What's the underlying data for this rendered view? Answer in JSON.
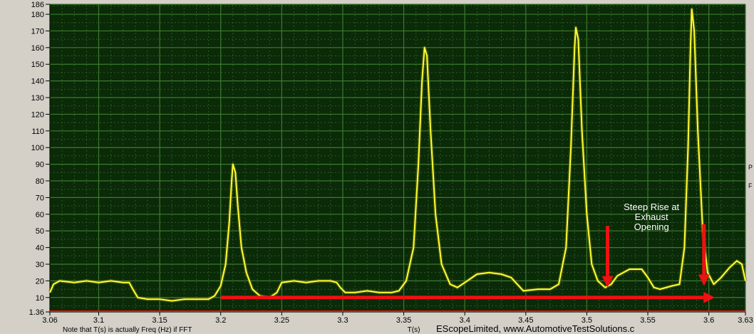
{
  "chart_data": {
    "type": "line",
    "title": "",
    "xlabel": "T(s)",
    "ylabel": "",
    "xlim": [
      3.06,
      3.63
    ],
    "ylim": [
      1.36,
      186
    ],
    "grid": true,
    "x_ticks": [
      "3.06",
      "3.1",
      "3.15",
      "3.2",
      "3.25",
      "3.3",
      "3.35",
      "3.4",
      "3.45",
      "3.5",
      "3.55",
      "3.6",
      "3.63"
    ],
    "x_tick_values": [
      3.06,
      3.1,
      3.15,
      3.2,
      3.25,
      3.3,
      3.35,
      3.4,
      3.45,
      3.5,
      3.55,
      3.6,
      3.63
    ],
    "y_ticks": [
      "1.36",
      "10",
      "20",
      "30",
      "40",
      "50",
      "60",
      "70",
      "80",
      "90",
      "100",
      "110",
      "120",
      "130",
      "140",
      "150",
      "160",
      "170",
      "180",
      "186"
    ],
    "y_tick_values": [
      1.36,
      10,
      20,
      30,
      40,
      50,
      60,
      70,
      80,
      90,
      100,
      110,
      120,
      130,
      140,
      150,
      160,
      170,
      180,
      186
    ],
    "series": [
      {
        "color": "#ffff33",
        "points": [
          [
            3.06,
            13
          ],
          [
            3.063,
            18
          ],
          [
            3.068,
            20
          ],
          [
            3.08,
            19
          ],
          [
            3.09,
            20
          ],
          [
            3.1,
            19
          ],
          [
            3.11,
            20
          ],
          [
            3.12,
            19
          ],
          [
            3.125,
            19
          ],
          [
            3.128,
            15
          ],
          [
            3.132,
            10
          ],
          [
            3.14,
            9
          ],
          [
            3.15,
            9
          ],
          [
            3.16,
            8
          ],
          [
            3.17,
            9
          ],
          [
            3.18,
            9
          ],
          [
            3.19,
            9
          ],
          [
            3.195,
            11
          ],
          [
            3.2,
            17
          ],
          [
            3.204,
            30
          ],
          [
            3.207,
            55
          ],
          [
            3.209,
            80
          ],
          [
            3.21,
            90
          ],
          [
            3.212,
            85
          ],
          [
            3.214,
            65
          ],
          [
            3.217,
            40
          ],
          [
            3.221,
            25
          ],
          [
            3.226,
            15
          ],
          [
            3.232,
            11
          ],
          [
            3.24,
            10
          ],
          [
            3.246,
            13
          ],
          [
            3.25,
            19
          ],
          [
            3.26,
            20
          ],
          [
            3.27,
            19
          ],
          [
            3.28,
            20
          ],
          [
            3.29,
            20
          ],
          [
            3.295,
            19
          ],
          [
            3.298,
            16
          ],
          [
            3.302,
            13
          ],
          [
            3.31,
            13
          ],
          [
            3.32,
            14
          ],
          [
            3.33,
            13
          ],
          [
            3.34,
            13
          ],
          [
            3.346,
            14
          ],
          [
            3.352,
            20
          ],
          [
            3.358,
            40
          ],
          [
            3.362,
            90
          ],
          [
            3.365,
            140
          ],
          [
            3.367,
            160
          ],
          [
            3.369,
            155
          ],
          [
            3.372,
            110
          ],
          [
            3.376,
            60
          ],
          [
            3.381,
            30
          ],
          [
            3.388,
            18
          ],
          [
            3.394,
            16
          ],
          [
            3.402,
            20
          ],
          [
            3.41,
            24
          ],
          [
            3.42,
            25
          ],
          [
            3.43,
            24
          ],
          [
            3.438,
            22
          ],
          [
            3.443,
            18
          ],
          [
            3.448,
            14
          ],
          [
            3.46,
            15
          ],
          [
            3.47,
            15
          ],
          [
            3.477,
            18
          ],
          [
            3.483,
            40
          ],
          [
            3.487,
            100
          ],
          [
            3.49,
            160
          ],
          [
            3.491,
            172
          ],
          [
            3.493,
            165
          ],
          [
            3.496,
            110
          ],
          [
            3.5,
            60
          ],
          [
            3.504,
            30
          ],
          [
            3.509,
            20
          ],
          [
            3.515,
            16
          ],
          [
            3.52,
            18
          ],
          [
            3.525,
            23
          ],
          [
            3.535,
            27
          ],
          [
            3.545,
            27
          ],
          [
            3.55,
            22
          ],
          [
            3.555,
            16
          ],
          [
            3.56,
            15
          ],
          [
            3.57,
            17
          ],
          [
            3.576,
            18
          ],
          [
            3.58,
            40
          ],
          [
            3.583,
            100
          ],
          [
            3.585,
            160
          ],
          [
            3.586,
            183
          ],
          [
            3.588,
            170
          ],
          [
            3.591,
            110
          ],
          [
            3.595,
            50
          ],
          [
            3.599,
            25
          ],
          [
            3.604,
            18
          ],
          [
            3.61,
            22
          ],
          [
            3.617,
            28
          ],
          [
            3.623,
            32
          ],
          [
            3.627,
            30
          ],
          [
            3.63,
            20
          ]
        ]
      }
    ],
    "annotations": [
      {
        "text_lines": [
          "Steep Rise at",
          "Exhaust",
          "Opening"
        ],
        "x": 3.553,
        "y": 53
      },
      {
        "type": "arrow",
        "label": "",
        "from": [
          3.517,
          53
        ],
        "to": [
          3.517,
          16
        ],
        "color": "#ee1111"
      },
      {
        "type": "arrow",
        "label": "",
        "from": [
          3.596,
          54
        ],
        "to": [
          3.596,
          17
        ],
        "color": "#ee1111"
      },
      {
        "type": "arrow",
        "label": "",
        "from": [
          3.2,
          10
        ],
        "to": [
          3.605,
          10
        ],
        "color": "#ee1111"
      }
    ],
    "footer": {
      "note": "Note that T(s) is actually Freq (Hz) if FFT",
      "axis_label": "T(s)",
      "brand": "EScopeLimited, www.AutomotiveTestSolutions.c"
    },
    "side_marks": [
      "P",
      "F"
    ]
  }
}
